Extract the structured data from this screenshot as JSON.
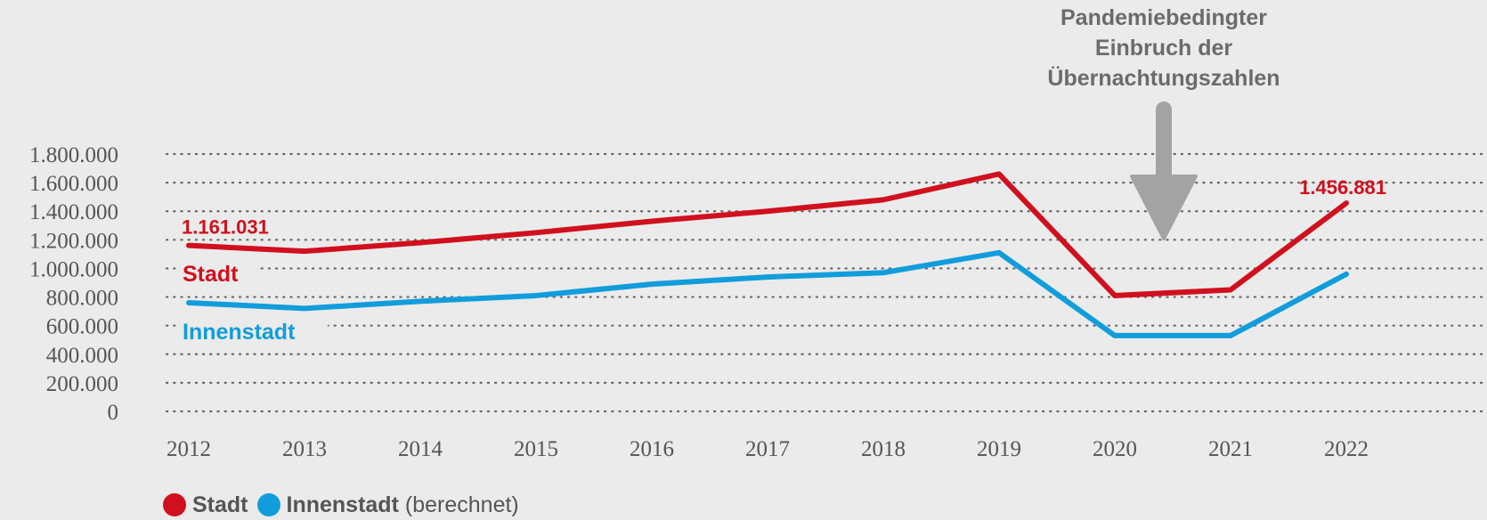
{
  "chart_data": {
    "type": "line",
    "categories": [
      "2012",
      "2013",
      "2014",
      "2015",
      "2016",
      "2017",
      "2018",
      "2019",
      "2020",
      "2021",
      "2022"
    ],
    "ylim": [
      0,
      1800000
    ],
    "y_ticks": [
      {
        "value": 1800000,
        "label": "1.800.000"
      },
      {
        "value": 1600000,
        "label": "1.600.000"
      },
      {
        "value": 1400000,
        "label": "1.400.000"
      },
      {
        "value": 1200000,
        "label": "1.200.000"
      },
      {
        "value": 1000000,
        "label": "1.000.000"
      },
      {
        "value": 800000,
        "label": "800.000"
      },
      {
        "value": 600000,
        "label": "600.000"
      },
      {
        "value": 400000,
        "label": "400.000"
      },
      {
        "value": 200000,
        "label": "200.000"
      },
      {
        "value": 0,
        "label": "0"
      }
    ],
    "grid": true,
    "series": [
      {
        "name": "Stadt",
        "color": "#d0101e",
        "values": [
          1161031,
          1120000,
          1180000,
          1250000,
          1330000,
          1400000,
          1480000,
          1660000,
          810000,
          850000,
          1456881
        ]
      },
      {
        "name": "Innenstadt",
        "color": "#119ddb",
        "values": [
          760000,
          720000,
          770000,
          810000,
          890000,
          940000,
          970000,
          1110000,
          530000,
          530000,
          960000
        ]
      }
    ],
    "data_labels": [
      {
        "series": 0,
        "index": 0,
        "text": "1.161.031"
      },
      {
        "series": 0,
        "index": 10,
        "text": "1.456.881"
      }
    ],
    "series_labels": [
      "Stadt",
      "Innenstadt"
    ],
    "annotation": {
      "lines": [
        "Pandemiebedingter",
        "Einbruch der",
        "Übernachtungszahlen"
      ],
      "color": "#a3a3a3"
    },
    "legend": {
      "position": "bottom-left",
      "items": [
        {
          "name": "Stadt",
          "color": "#d0101e",
          "suffix": ""
        },
        {
          "name": "Innenstadt",
          "color": "#119ddb",
          "suffix": "(berechnet)"
        }
      ]
    }
  }
}
